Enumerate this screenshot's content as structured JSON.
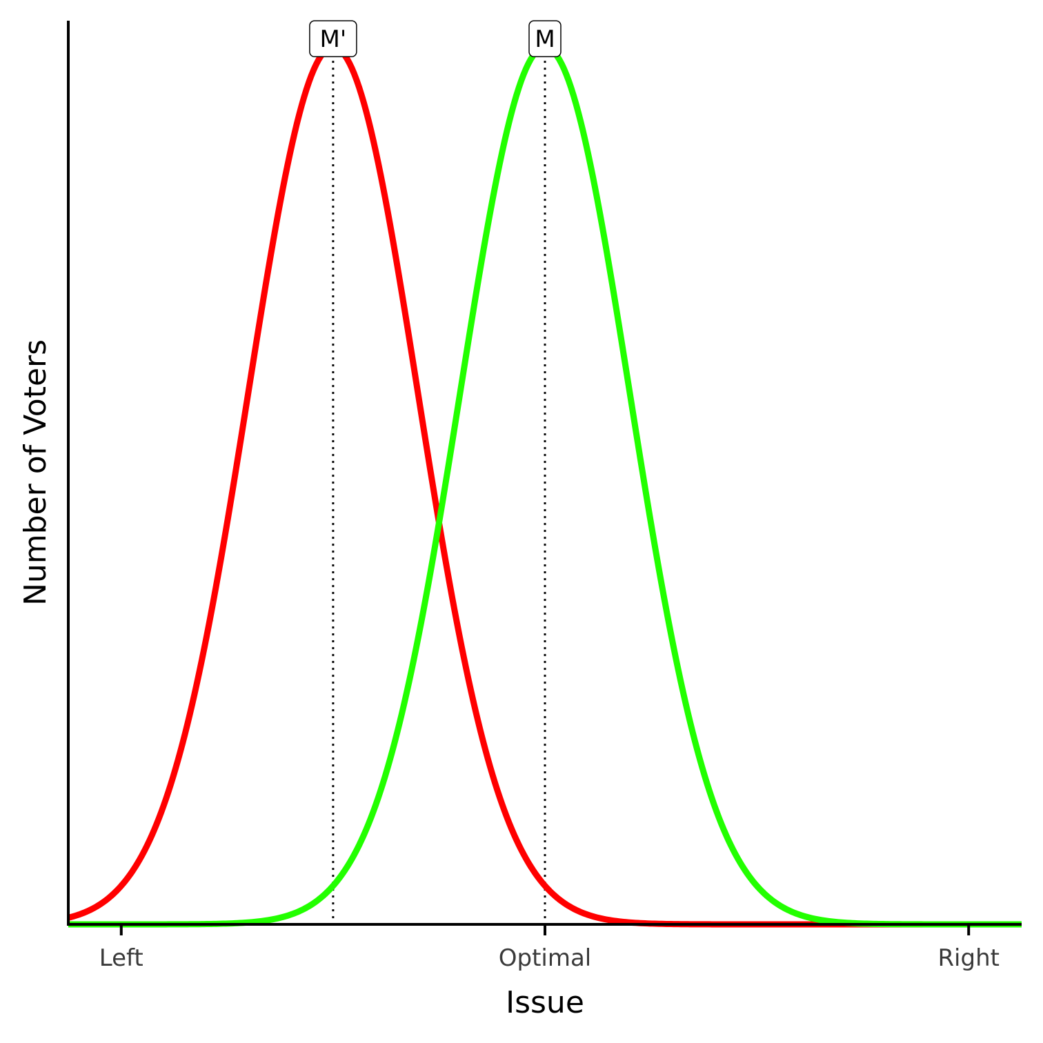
{
  "chart_data": {
    "type": "line",
    "title": "",
    "xlabel": "Issue",
    "ylabel": "Number of Voters",
    "xlim": [
      -0.125,
      2.125
    ],
    "ylim": [
      0,
      1.03
    ],
    "x_ticks": [
      {
        "value": 0,
        "label": "Left"
      },
      {
        "value": 1,
        "label": "Optimal"
      },
      {
        "value": 2,
        "label": "Right"
      }
    ],
    "y_ticks": [],
    "grid": false,
    "legend": "none",
    "series": [
      {
        "color": "#ff0000",
        "mean": 0.5,
        "sd": 0.2,
        "peak": 1.0
      },
      {
        "color": "#22ff00",
        "mean": 1.0,
        "sd": 0.2,
        "peak": 1.0
      }
    ],
    "annotations": [
      {
        "label": "M'",
        "x": 0.5,
        "y": 1.0
      },
      {
        "label": "M",
        "x": 1.0,
        "y": 1.0
      }
    ]
  }
}
